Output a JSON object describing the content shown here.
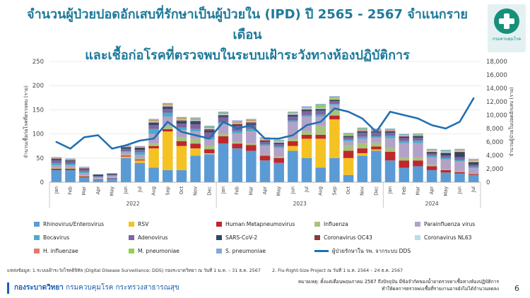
{
  "title": {
    "line1": "จำนวนผู้ป่วยปอดอักเสบที่รักษาเป็นผู้ป่วยใน (IPD) ปี 2565 - 2567 จำแนกรายเดือน",
    "line2": "และเชื้อก่อโรคที่ตรวจพบในระบบเฝ้าระวังทางห้องปฏิบัติการ"
  },
  "logo": {
    "text": "กรมควบคุมโรค"
  },
  "chart_data": {
    "type": "bar",
    "stacked": true,
    "x": [
      "Jan",
      "Feb",
      "Mar",
      "Apr",
      "May",
      "Jun",
      "Jul",
      "Aug",
      "Sep",
      "Oct",
      "Nov",
      "Dec",
      "Jan",
      "Feb",
      "Mar",
      "Apr",
      "May",
      "Jun",
      "Jul",
      "Aug",
      "Sep",
      "Oct",
      "Nov",
      "Dec",
      "Jan",
      "Feb",
      "Mar",
      "Apr",
      "May",
      "Jun",
      "Jul"
    ],
    "year_groups": [
      {
        "label": "2022",
        "start": 0,
        "end": 11
      },
      {
        "label": "2023",
        "start": 12,
        "end": 23
      },
      {
        "label": "2024",
        "start": 24,
        "end": 30
      }
    ],
    "ylabel": "จำนวนเชื้อก่อโรคที่ตรวจพบ (ราย)",
    "y2label": "จำนวนผู้ป่วยในปอดอักเสบ (ราย)",
    "ylim": [
      0,
      250
    ],
    "yticks": [
      0,
      50,
      100,
      150,
      200,
      250
    ],
    "y2lim": [
      0,
      18000
    ],
    "y2ticks": [
      "0",
      "2,000",
      "4,000",
      "6,000",
      "8,000",
      "10,000",
      "12,000",
      "14,000",
      "16,000",
      "18,000"
    ],
    "grid": true,
    "series": [
      {
        "name": "Rhinovirus/Enterovirus",
        "color": "#5b9bd5",
        "values": [
          25,
          25,
          10,
          5,
          8,
          50,
          40,
          30,
          25,
          25,
          55,
          58,
          80,
          70,
          65,
          45,
          40,
          65,
          50,
          30,
          50,
          15,
          55,
          65,
          45,
          30,
          33,
          25,
          20,
          18,
          15
        ]
      },
      {
        "name": "RSV",
        "color": "#f5c223",
        "values": [
          0,
          0,
          0,
          0,
          0,
          3,
          5,
          40,
          80,
          50,
          15,
          2,
          0,
          0,
          0,
          0,
          0,
          10,
          40,
          60,
          80,
          35,
          5,
          3,
          0,
          0,
          0,
          0,
          0,
          0,
          0
        ]
      },
      {
        "name": "Human Metapneumovirus",
        "color": "#c0272d",
        "values": [
          3,
          3,
          2,
          1,
          1,
          2,
          2,
          5,
          5,
          10,
          10,
          8,
          15,
          10,
          12,
          10,
          10,
          10,
          8,
          8,
          8,
          15,
          10,
          6,
          18,
          15,
          12,
          8,
          5,
          3,
          2
        ]
      },
      {
        "name": "Influenza",
        "color": "#a6c47a",
        "values": [
          2,
          2,
          2,
          1,
          1,
          2,
          2,
          5,
          6,
          8,
          10,
          8,
          5,
          3,
          3,
          2,
          3,
          5,
          8,
          18,
          12,
          10,
          10,
          8,
          8,
          6,
          6,
          3,
          2,
          2,
          2
        ]
      },
      {
        "name": "Parainfluenza virus",
        "color": "#b3a2c7",
        "values": [
          5,
          5,
          5,
          3,
          3,
          5,
          8,
          20,
          20,
          15,
          15,
          12,
          20,
          18,
          25,
          18,
          18,
          35,
          30,
          20,
          10,
          10,
          10,
          10,
          20,
          30,
          30,
          15,
          20,
          20,
          10
        ]
      },
      {
        "name": "Bocavirus",
        "color": "#4bacc6",
        "values": [
          4,
          3,
          3,
          1,
          1,
          2,
          5,
          10,
          8,
          5,
          5,
          5,
          4,
          5,
          5,
          3,
          3,
          3,
          3,
          4,
          2,
          3,
          4,
          3,
          5,
          4,
          5,
          4,
          3,
          3,
          3
        ]
      },
      {
        "name": "Adenovirus",
        "color": "#8064a2",
        "values": [
          6,
          5,
          4,
          2,
          2,
          5,
          5,
          8,
          8,
          8,
          10,
          10,
          10,
          10,
          8,
          5,
          5,
          8,
          8,
          8,
          6,
          5,
          8,
          8,
          6,
          6,
          6,
          4,
          5,
          6,
          4
        ]
      },
      {
        "name": "SARS-CoV-2",
        "color": "#2e4a62",
        "values": [
          3,
          2,
          2,
          3,
          2,
          3,
          4,
          5,
          4,
          5,
          5,
          4,
          3,
          3,
          3,
          2,
          2,
          3,
          3,
          3,
          2,
          2,
          3,
          2,
          3,
          3,
          3,
          3,
          5,
          10,
          5
        ]
      },
      {
        "name": "Coronavirus OC43",
        "color": "#8b3a3a",
        "values": [
          1,
          1,
          1,
          0,
          0,
          1,
          1,
          1,
          1,
          2,
          2,
          3,
          2,
          2,
          3,
          2,
          1,
          1,
          1,
          1,
          1,
          1,
          1,
          1,
          1,
          1,
          1,
          1,
          1,
          1,
          1
        ]
      },
      {
        "name": "Coronavirus NL63",
        "color": "#b7dde8",
        "values": [
          1,
          1,
          1,
          0,
          0,
          1,
          1,
          2,
          2,
          2,
          2,
          2,
          2,
          2,
          2,
          2,
          2,
          2,
          2,
          2,
          1,
          1,
          1,
          1,
          1,
          1,
          1,
          2,
          2,
          2,
          2
        ]
      },
      {
        "name": "H. influenzae",
        "color": "#e07b6c",
        "values": [
          1,
          1,
          1,
          0,
          0,
          1,
          1,
          2,
          2,
          2,
          2,
          2,
          2,
          2,
          2,
          1,
          1,
          1,
          1,
          1,
          1,
          1,
          1,
          1,
          1,
          1,
          1,
          1,
          1,
          1,
          1
        ]
      },
      {
        "name": "M. pneumoniae",
        "color": "#92d050",
        "values": [
          0,
          0,
          0,
          0,
          0,
          0,
          0,
          1,
          1,
          1,
          1,
          1,
          1,
          1,
          1,
          1,
          1,
          1,
          1,
          5,
          3,
          2,
          3,
          1,
          1,
          1,
          1,
          1,
          1,
          1,
          1
        ]
      },
      {
        "name": "S. pneumoniae",
        "color": "#7fa9d8",
        "values": [
          1,
          1,
          1,
          0,
          0,
          1,
          1,
          2,
          2,
          2,
          2,
          2,
          2,
          2,
          2,
          2,
          2,
          2,
          2,
          2,
          2,
          2,
          2,
          2,
          2,
          2,
          2,
          2,
          2,
          2,
          2
        ]
      }
    ],
    "line": {
      "name": "ผู้ป่วยรักษาใน รพ. จากระบบ DDS",
      "color": "#1f6fb2",
      "axis": "y2",
      "values": [
        6000,
        5000,
        6700,
        7000,
        5000,
        5500,
        6200,
        6500,
        9000,
        7500,
        7000,
        6500,
        9000,
        8000,
        8500,
        6500,
        6500,
        7000,
        8500,
        9000,
        11000,
        10500,
        9500,
        7500,
        10500,
        10000,
        9500,
        8500,
        8000,
        9000,
        12500
      ]
    }
  },
  "legend": [
    {
      "label": "Rhinovirus/Enterovirus",
      "color": "#5b9bd5",
      "kind": "box"
    },
    {
      "label": "RSV",
      "color": "#f5c223",
      "kind": "box"
    },
    {
      "label": "Human Metapneumovirus",
      "color": "#c0272d",
      "kind": "box"
    },
    {
      "label": "Influenza",
      "color": "#a6c47a",
      "kind": "box"
    },
    {
      "label": "Parainfluenza virus",
      "color": "#b3a2c7",
      "kind": "box"
    },
    {
      "label": "Bocavirus",
      "color": "#4bacc6",
      "kind": "box"
    },
    {
      "label": "Adenovirus",
      "color": "#8064a2",
      "kind": "box"
    },
    {
      "label": "SARS-CoV-2",
      "color": "#2e4a62",
      "kind": "box"
    },
    {
      "label": "Coronavirus OC43",
      "color": "#8b3a3a",
      "kind": "box"
    },
    {
      "label": "Coronavirus NL63",
      "color": "#b7dde8",
      "kind": "box"
    },
    {
      "label": "H. influenzae",
      "color": "#e07b6c",
      "kind": "box"
    },
    {
      "label": "M. pneumoniae",
      "color": "#92d050",
      "kind": "box"
    },
    {
      "label": "S. pneumoniae",
      "color": "#7fa9d8",
      "kind": "box"
    },
    {
      "label": "ผู้ป่วยรักษาใน รพ. จากระบบ DDS",
      "color": "#1f6fb2",
      "kind": "line"
    }
  ],
  "source": {
    "part1": "แหล่งข้อมูล: 1.ระบบเฝ้าระวังโรคดิจิทัล (Digital Disease Surveillance; DDS) กองระบาดวิทยา ณ วันที่ 1 ม.ค. – 31 ธ.ค. 2567",
    "part2": "2. Flu-Right-Size Project ณ วันที่ 1 ม.ค. 2564 – 24 ธ.ค. 2567"
  },
  "note": {
    "line1": "หมายเหตุ: ตั้งแต่เดือนพฤษภาคม 2567 ถึงปัจจุบัน มีข้อจำกัดของน้ำยาตรวจหาเชื้อทางห้องปฏิบัติการ",
    "line2": "ทำให้ผลการตรวจพบเชื้อที่รายงานอาจยังไม่ได้จำนวนลดลง"
  },
  "footer": {
    "org": "กองระบาดวิทยา",
    "dept": "กรมควบคุมโรค กระทรวงสาธารณสุข"
  },
  "page_number": "6"
}
